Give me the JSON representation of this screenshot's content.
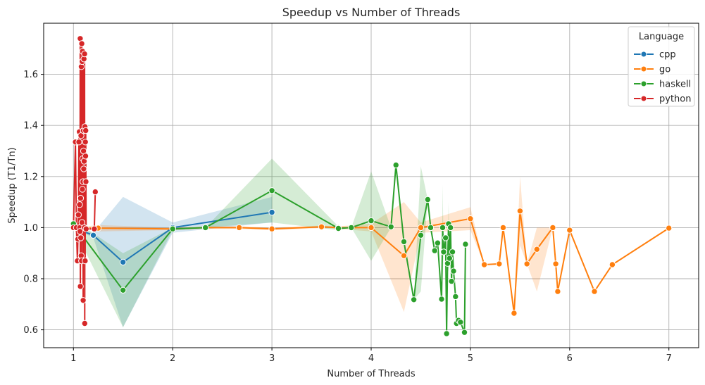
{
  "chart_data": {
    "type": "line",
    "title": "Speedup vs Number of Threads",
    "xlabel": "Number of Threads",
    "ylabel": "Speedup (T1/Tn)",
    "xlim": [
      0.7,
      7.3
    ],
    "ylim": [
      0.53,
      1.8
    ],
    "xticks": [
      1,
      2,
      3,
      4,
      5,
      6,
      7
    ],
    "yticks": [
      0.6,
      0.8,
      1.0,
      1.2,
      1.4,
      1.6
    ],
    "grid": true,
    "legend": {
      "title": "Language",
      "placement": "top-right"
    },
    "series": [
      {
        "name": "cpp",
        "color": "#1f77b4",
        "points": [
          [
            1.0,
            1.0
          ],
          [
            1.2,
            0.97
          ],
          [
            1.5,
            0.865
          ],
          [
            2.0,
            1.0
          ],
          [
            3.0,
            1.06
          ]
        ],
        "band": [
          [
            1.0,
            1.0,
            1.0
          ],
          [
            1.2,
            0.96,
            0.98
          ],
          [
            1.5,
            0.61,
            1.12
          ],
          [
            2.0,
            0.98,
            1.02
          ],
          [
            3.0,
            1.02,
            1.12
          ]
        ]
      },
      {
        "name": "go",
        "color": "#ff7f0e",
        "points": [
          [
            1.0,
            1.0
          ],
          [
            1.25,
            0.998
          ],
          [
            2.0,
            0.995
          ],
          [
            2.33,
            1.0
          ],
          [
            2.67,
            1.0
          ],
          [
            3.0,
            0.995
          ],
          [
            3.5,
            1.003
          ],
          [
            3.67,
            1.0
          ],
          [
            4.0,
            1.0
          ],
          [
            4.33,
            0.89
          ],
          [
            4.5,
            1.0
          ],
          [
            5.0,
            1.035
          ],
          [
            5.14,
            0.855
          ],
          [
            5.29,
            0.858
          ],
          [
            5.33,
            1.0
          ],
          [
            5.44,
            0.665
          ],
          [
            5.5,
            1.065
          ],
          [
            5.57,
            0.858
          ],
          [
            5.67,
            0.915
          ],
          [
            5.83,
            1.0
          ],
          [
            5.86,
            0.858
          ],
          [
            5.88,
            0.75
          ],
          [
            6.0,
            0.99
          ],
          [
            6.25,
            0.75
          ],
          [
            6.43,
            0.855
          ],
          [
            7.0,
            0.998
          ]
        ],
        "band": [
          [
            1.0,
            1.0,
            1.0
          ],
          [
            1.25,
            0.985,
            1.01
          ],
          [
            2.0,
            0.99,
            1.0
          ],
          [
            2.33,
            0.995,
            1.005
          ],
          [
            2.67,
            0.995,
            1.005
          ],
          [
            3.0,
            0.99,
            1.0
          ],
          [
            3.5,
            0.998,
            1.008
          ],
          [
            3.67,
            0.995,
            1.005
          ],
          [
            4.0,
            0.985,
            1.015
          ],
          [
            4.33,
            0.67,
            1.1
          ],
          [
            4.5,
            0.98,
            1.02
          ],
          [
            5.0,
            0.99,
            1.08
          ],
          [
            5.14,
            0.855,
            0.855
          ],
          [
            5.29,
            0.858,
            0.858
          ],
          [
            5.33,
            1.0,
            1.0
          ],
          [
            5.44,
            0.665,
            0.665
          ],
          [
            5.5,
            0.93,
            1.2
          ],
          [
            5.57,
            0.858,
            0.858
          ],
          [
            5.67,
            0.75,
            1.0
          ],
          [
            5.83,
            1.0,
            1.0
          ],
          [
            5.86,
            0.858,
            0.858
          ],
          [
            5.88,
            0.75,
            0.75
          ],
          [
            6.0,
            0.99,
            0.99
          ],
          [
            6.25,
            0.75,
            0.75
          ],
          [
            6.43,
            0.855,
            0.855
          ],
          [
            7.0,
            0.998,
            0.998
          ]
        ]
      },
      {
        "name": "haskell",
        "color": "#2ca02c",
        "points": [
          [
            1.0,
            1.015
          ],
          [
            1.5,
            0.755
          ],
          [
            2.0,
            0.995
          ],
          [
            2.33,
            1.0
          ],
          [
            3.0,
            1.145
          ],
          [
            3.67,
            0.997
          ],
          [
            3.8,
            1.0
          ],
          [
            4.0,
            1.027
          ],
          [
            4.2,
            1.003
          ],
          [
            4.25,
            1.245
          ],
          [
            4.33,
            0.945
          ],
          [
            4.43,
            0.718
          ],
          [
            4.5,
            0.97
          ],
          [
            4.57,
            1.11
          ],
          [
            4.6,
            1.0
          ],
          [
            4.64,
            0.91
          ],
          [
            4.67,
            0.94
          ],
          [
            4.71,
            0.72
          ],
          [
            4.72,
            1.0
          ],
          [
            4.73,
            0.905
          ],
          [
            4.75,
            0.96
          ],
          [
            4.76,
            0.585
          ],
          [
            4.77,
            0.86
          ],
          [
            4.78,
            1.015
          ],
          [
            4.79,
            0.88
          ],
          [
            4.8,
            1.0
          ],
          [
            4.81,
            0.79
          ],
          [
            4.82,
            0.905
          ],
          [
            4.83,
            0.83
          ],
          [
            4.85,
            0.73
          ],
          [
            4.86,
            0.625
          ],
          [
            4.88,
            0.637
          ],
          [
            4.9,
            0.63
          ],
          [
            4.94,
            0.59
          ],
          [
            4.95,
            0.935
          ]
        ],
        "band": [
          [
            1.0,
            1.0,
            1.03
          ],
          [
            1.5,
            0.61,
            0.9
          ],
          [
            2.0,
            0.99,
            1.0
          ],
          [
            2.33,
            1.0,
            1.0
          ],
          [
            3.0,
            1.02,
            1.27
          ],
          [
            3.67,
            0.99,
            1.005
          ],
          [
            3.8,
            1.0,
            1.0
          ],
          [
            4.0,
            0.87,
            1.22
          ],
          [
            4.2,
            1.0,
            1.0
          ],
          [
            4.25,
            1.245,
            1.245
          ],
          [
            4.33,
            0.945,
            0.945
          ],
          [
            4.43,
            0.718,
            0.718
          ],
          [
            4.5,
            0.75,
            1.24
          ],
          [
            4.57,
            1.11,
            1.11
          ],
          [
            4.6,
            1.0,
            1.0
          ],
          [
            4.64,
            0.91,
            0.91
          ],
          [
            4.67,
            0.94,
            0.94
          ],
          [
            4.71,
            0.72,
            0.72
          ],
          [
            4.72,
            0.8,
            1.17
          ],
          [
            4.73,
            0.905,
            0.905
          ],
          [
            4.75,
            0.96,
            0.96
          ],
          [
            4.76,
            0.585,
            0.585
          ],
          [
            4.77,
            0.86,
            0.86
          ],
          [
            4.78,
            0.83,
            1.1
          ],
          [
            4.79,
            0.88,
            0.88
          ],
          [
            4.8,
            1.0,
            1.0
          ],
          [
            4.81,
            0.79,
            0.79
          ],
          [
            4.82,
            0.905,
            0.905
          ],
          [
            4.83,
            0.83,
            0.83
          ],
          [
            4.85,
            0.73,
            0.73
          ],
          [
            4.86,
            0.625,
            0.625
          ],
          [
            4.88,
            0.637,
            0.637
          ],
          [
            4.9,
            0.63,
            0.63
          ],
          [
            4.94,
            0.59,
            0.59
          ],
          [
            4.95,
            0.935,
            0.935
          ]
        ]
      },
      {
        "name": "python",
        "color": "#d62728",
        "points": [
          [
            1.0,
            1.0
          ],
          [
            1.02,
            1.335
          ],
          [
            1.03,
            1.0
          ],
          [
            1.04,
            0.87
          ],
          [
            1.045,
            0.955
          ],
          [
            1.05,
            1.05
          ],
          [
            1.055,
            1.335
          ],
          [
            1.06,
            1.375
          ],
          [
            1.062,
            1.09
          ],
          [
            1.064,
            1.0
          ],
          [
            1.066,
            0.985
          ],
          [
            1.068,
            1.74
          ],
          [
            1.07,
            0.77
          ],
          [
            1.072,
            1.115
          ],
          [
            1.074,
            0.96
          ],
          [
            1.076,
            1.36
          ],
          [
            1.078,
            0.89
          ],
          [
            1.08,
            1.63
          ],
          [
            1.082,
            0.87
          ],
          [
            1.084,
            1.72
          ],
          [
            1.086,
            1.02
          ],
          [
            1.088,
            1.65
          ],
          [
            1.09,
            1.15
          ],
          [
            1.092,
            1.69
          ],
          [
            1.094,
            1.27
          ],
          [
            1.096,
            1.18
          ],
          [
            1.098,
            0.715
          ],
          [
            1.1,
            1.38
          ],
          [
            1.102,
            1.3
          ],
          [
            1.104,
            1.23
          ],
          [
            1.106,
            1.66
          ],
          [
            1.108,
            1.26
          ],
          [
            1.11,
            1.0
          ],
          [
            1.112,
            1.68
          ],
          [
            1.114,
            0.625
          ],
          [
            1.116,
            1.395
          ],
          [
            1.118,
            0.87
          ],
          [
            1.12,
            1.335
          ],
          [
            1.122,
            1.28
          ],
          [
            1.124,
            1.38
          ],
          [
            1.126,
            1.18
          ],
          [
            1.128,
            0.995
          ],
          [
            1.21,
            0.995
          ],
          [
            1.22,
            1.14
          ]
        ],
        "band": []
      }
    ]
  }
}
